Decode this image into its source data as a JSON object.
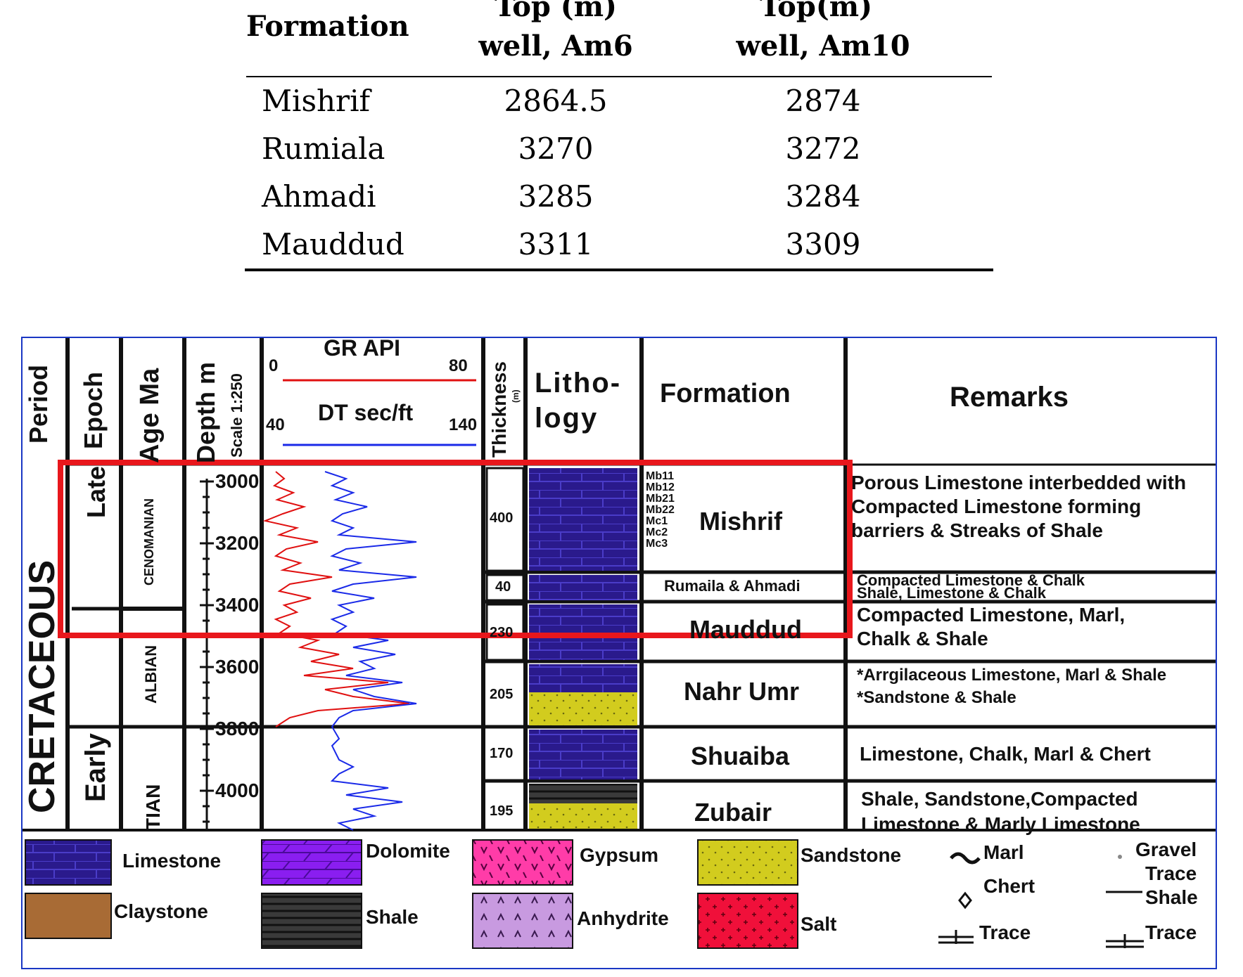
{
  "table": {
    "header": {
      "formation": "Formation",
      "am6_line1": "Top (m)",
      "am6_line2": "well, Am6",
      "am10_line1": "Top(m)",
      "am10_line2": "well, Am10"
    },
    "rows": [
      {
        "formation": "Mishrif",
        "am6": "2864.5",
        "am10": "2874"
      },
      {
        "formation": "Rumiala",
        "am6": "3270",
        "am10": "3272"
      },
      {
        "formation": "Ahmadi",
        "am6": "3285",
        "am10": "3284"
      },
      {
        "formation": "Mauddud",
        "am6": "3311",
        "am10": "3309"
      }
    ]
  },
  "column": {
    "headers": {
      "period": "Period",
      "epoch": "Epoch",
      "age": "Age Ma",
      "depth": "Depth m",
      "scale": "Scale 1:250",
      "gr": "GR API",
      "gr_min": "0",
      "gr_max": "80",
      "dt": "DT sec/ft",
      "dt_min": "40",
      "dt_max": "140",
      "thickness": "Thickness",
      "thickness_unit": "(m)",
      "lithology_1": "Litho-",
      "lithology_2": "logy",
      "formation": "Formation",
      "remarks": "Remarks"
    },
    "period": "CRETACEOUS",
    "epochs": {
      "late": "Late",
      "early": "Early"
    },
    "ages": {
      "cenomanian": "CENOMANIAN",
      "albian": "ALBIAN",
      "aptian": "TIAN"
    },
    "depths": [
      "3000",
      "3200",
      "3400",
      "3600",
      "3800",
      "4000"
    ],
    "units": [
      {
        "thickness": "400",
        "formation": "Mishrif",
        "remarks_1": "Porous Limestone interbedded with",
        "remarks_2": "Compacted Limestone forming",
        "remarks_3": "barriers & Streaks of Shale"
      },
      {
        "thickness": "40",
        "formation": "Rumaila & Ahmadi",
        "remarks_1": "Compacted Limestone & Chalk",
        "remarks_2": "Shale, Limestone & Chalk",
        "remarks_3": ""
      },
      {
        "thickness": "230",
        "formation": "Mauddud",
        "remarks_1": "Compacted Limestone, Marl,",
        "remarks_2": "Chalk & Shale",
        "remarks_3": ""
      },
      {
        "thickness": "205",
        "formation": "Nahr Umr",
        "remarks_1": "*Arrgilaceous Limestone, Marl & Shale",
        "remarks_2": "*Sandstone & Shale",
        "remarks_3": ""
      },
      {
        "thickness": "170",
        "formation": "Shuaiba",
        "remarks_1": "Limestone, Chalk, Marl & Chert",
        "remarks_2": "",
        "remarks_3": ""
      },
      {
        "thickness": "195",
        "formation": "Zubair",
        "remarks_1": "Shale, Sandstone,Compacted",
        "remarks_2": "Limestone & Marly Limestone",
        "remarks_3": ""
      }
    ],
    "mishrif_members": [
      "Mb11",
      "Mb12",
      "Mb21",
      "Mb22",
      "Mc1",
      "Mc2",
      "Mc3"
    ],
    "legend": {
      "limestone": "Limestone",
      "dolomite": "Dolomite",
      "gypsum": "Gypsum",
      "sandstone": "Sandstone",
      "claystone": "Claystone",
      "shale": "Shale",
      "anhydrite": "Anhydrite",
      "salt": "Salt",
      "marl": "Marl",
      "chert": "Chert",
      "trace": "Trace",
      "gravel": "Gravel",
      "trace_shale_1": "Trace",
      "trace_shale_2": "Shale",
      "trace_2": "Trace"
    },
    "colors": {
      "limestone": "#2a1a8c",
      "dolomite": "#8a1ef0",
      "gypsum": "#ff3ca8",
      "sandstone": "#d2cc1e",
      "claystone": "#a86b35",
      "shale": "#333333",
      "anhydrite": "#c89ae0",
      "salt": "#f0103a",
      "gr_curve": "#e01010",
      "dt_curve": "#1a2ae8",
      "highlight": "#e8171c",
      "frame": "#1a37c4"
    }
  }
}
